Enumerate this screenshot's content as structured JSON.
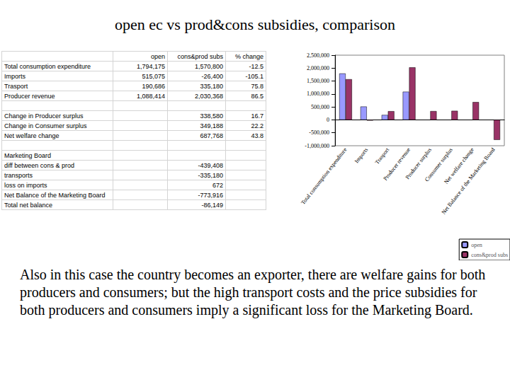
{
  "title": "open ec vs prod&cons subsidies, comparison",
  "table": {
    "header": [
      null,
      "open",
      "cons&prod subs",
      "% change"
    ],
    "rows": [
      [
        "Total consumption expenditure",
        "1,794,175",
        "1,570,800",
        "-12.5"
      ],
      [
        "Imports",
        "515,075",
        "-26,400",
        "-105.1"
      ],
      [
        "Trasport",
        "190,686",
        "335,180",
        "75.8"
      ],
      [
        "Producer revenue",
        "1,088,414",
        "2,030,368",
        "86.5"
      ],
      [
        null,
        null,
        null,
        null
      ],
      [
        "Change in Producer surplus",
        null,
        "338,580",
        "16.7"
      ],
      [
        "Change in Consumer surplus",
        null,
        "349,188",
        "22.2"
      ],
      [
        "Net welfare change",
        null,
        "687,768",
        "43.8"
      ],
      [
        null,
        null,
        null,
        null
      ],
      [
        "Marketing Board",
        null,
        null,
        null
      ],
      [
        "diff between cons & prod",
        null,
        "-439,408",
        null
      ],
      [
        "transports",
        null,
        "-335,180",
        null
      ],
      [
        "loss on imports",
        null,
        "672",
        null
      ],
      [
        "Net Balance of the Marketing Board",
        null,
        "-773,916",
        null
      ],
      [
        "Total net balance",
        null,
        "-86,149",
        null
      ]
    ]
  },
  "chart_data": {
    "type": "bar",
    "categories": [
      "Total consumption expenditure",
      "Imports",
      "Trasport",
      "Producer revenue",
      "Producer surplus",
      "Consumer surplus",
      "Net welfare change",
      "Net Balance of the Marketing Board"
    ],
    "series": [
      {
        "name": "open",
        "color": "#9999ff",
        "values": [
          1794175,
          515075,
          190686,
          1088414,
          null,
          null,
          null,
          null
        ]
      },
      {
        "name": "cons&prod subs",
        "color": "#993366",
        "values": [
          1570800,
          -26400,
          335180,
          2030368,
          338580,
          349188,
          687768,
          -773916
        ]
      }
    ],
    "ylim": [
      -1000000,
      2500000
    ],
    "yticks": [
      {
        "value": -1000000,
        "label": "-1,000,000"
      },
      {
        "value": -500000,
        "label": "-500,000"
      },
      0,
      {
        "value": 500000,
        "label": "500,000"
      },
      {
        "value": 1000000,
        "label": "1,000,000"
      },
      {
        "value": 1500000,
        "label": "1,500,000"
      },
      {
        "value": 2000000,
        "label": "2,000,000"
      },
      {
        "value": 2500000,
        "label": "2,500,000"
      }
    ],
    "grid": false,
    "legend": "bottom-right"
  },
  "caption": "Also in this case the country becomes an exporter, there are welfare gains for both producers and consumers; but the high transport costs and the price subsidies for both producers and consumers imply a significant loss for the Marketing Board."
}
